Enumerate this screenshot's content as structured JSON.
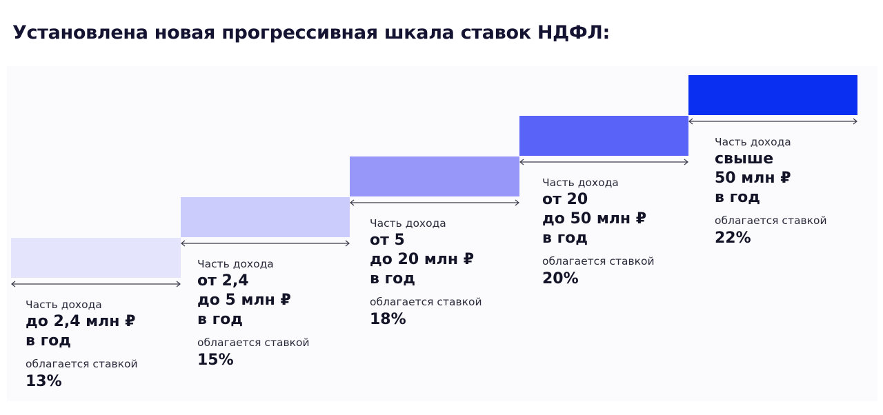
{
  "title": "Установлена новая прогрессивная шкала ставок НДФЛ:",
  "tiers": [
    {
      "label": "Часть дохода",
      "range": "до 2,4 млн ₽\nв год",
      "taxed_label": "облагается ставкой",
      "rate": "13%",
      "color": "#e4e4fc"
    },
    {
      "label": "Часть дохода",
      "range": "от 2,4\nдо 5 млн ₽\nв год",
      "taxed_label": "облагается ставкой",
      "rate": "15%",
      "color": "#ccccfc"
    },
    {
      "label": "Часть дохода",
      "range": "от 5\nдо 20 млн ₽\nв год",
      "taxed_label": "облагается ставкой",
      "rate": "18%",
      "color": "#9797fa"
    },
    {
      "label": "Часть дохода",
      "range": "от 20\nдо 50 млн ₽\nв год",
      "taxed_label": "облагается ставкой",
      "rate": "20%",
      "color": "#5a63f8"
    },
    {
      "label": "Часть дохода",
      "range": "свыше\n50 млн ₽\nв год",
      "taxed_label": "облагается ставкой",
      "rate": "22%",
      "color": "#0a2ff0"
    }
  ]
}
